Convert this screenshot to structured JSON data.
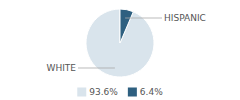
{
  "chart_data": {
    "type": "pie",
    "categories": [
      "WHITE",
      "HISPANIC"
    ],
    "values": [
      93.6,
      6.4
    ],
    "value_labels": [
      "93.6%",
      "6.4%"
    ],
    "colors": [
      "#d9e4ec",
      "#2e6080"
    ],
    "legend": "bottom"
  }
}
